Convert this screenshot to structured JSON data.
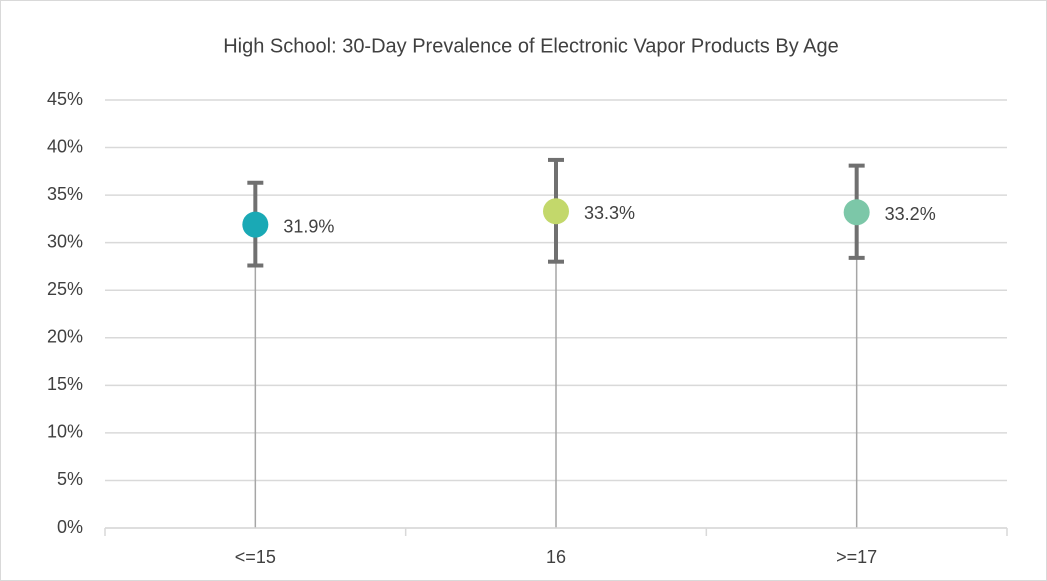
{
  "chart_data": {
    "type": "dot_errorbar",
    "title": "High School: 30-Day Prevalence of Electronic Vapor Products By Age",
    "categories": [
      "<=15",
      "16",
      ">=17"
    ],
    "values": [
      31.9,
      33.3,
      33.2
    ],
    "value_labels": [
      "31.9%",
      "33.3%",
      "33.2%"
    ],
    "lower": [
      27.6,
      28.0,
      28.4
    ],
    "upper": [
      36.3,
      38.7,
      38.1
    ],
    "colors": [
      "#1aa9b5",
      "#c3d86b",
      "#7cc7a8"
    ],
    "ylim": [
      0,
      45
    ],
    "yticks": [
      {
        "value": 0,
        "label": "0%"
      },
      {
        "value": 5,
        "label": "5%"
      },
      {
        "value": 10,
        "label": "10%"
      },
      {
        "value": 15,
        "label": "15%"
      },
      {
        "value": 20,
        "label": "20%"
      },
      {
        "value": 25,
        "label": "25%"
      },
      {
        "value": 30,
        "label": "30%"
      },
      {
        "value": 35,
        "label": "35%"
      },
      {
        "value": 40,
        "label": "40%"
      },
      {
        "value": 45,
        "label": "45%"
      }
    ],
    "grid": true
  }
}
